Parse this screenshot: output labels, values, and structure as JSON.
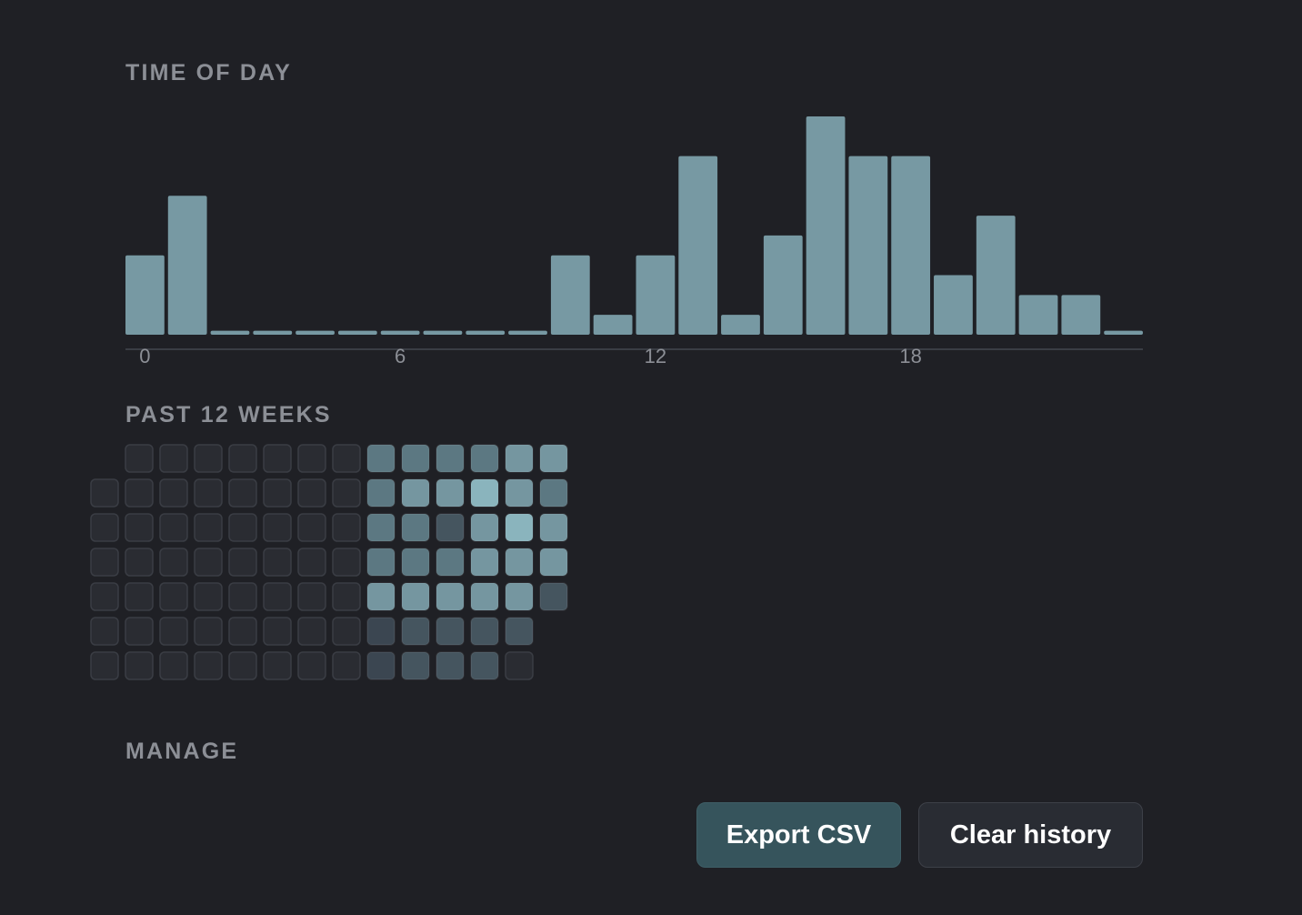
{
  "sections": {
    "time_of_day": "TIME OF DAY",
    "past_weeks": "PAST 12 WEEKS",
    "manage": "MANAGE"
  },
  "colors": {
    "background": "#1f2025",
    "bar": "#7799a3",
    "axis": "#3a3d44",
    "label": "#8c8f96",
    "export_button": "#36545c",
    "clear_button": "#292c33"
  },
  "chart_data": {
    "type": "bar",
    "categories": [
      "0",
      "1",
      "2",
      "3",
      "4",
      "5",
      "6",
      "7",
      "8",
      "9",
      "10",
      "11",
      "12",
      "13",
      "14",
      "15",
      "16",
      "17",
      "18",
      "19",
      "20",
      "21",
      "22",
      "23"
    ],
    "values": [
      4,
      7,
      0.2,
      0.2,
      0.2,
      0.2,
      0.2,
      0.2,
      0.2,
      0.2,
      4,
      1,
      4,
      9,
      1,
      5,
      11,
      9,
      9,
      3,
      6,
      2,
      2,
      0.2
    ],
    "tick_labels": [
      "0",
      "6",
      "12",
      "18"
    ],
    "ylim": [
      0,
      11
    ],
    "title": "TIME OF DAY",
    "xlabel": "",
    "ylabel": "",
    "grid": false
  },
  "heatmap": {
    "title": "PAST 12 WEEKS",
    "levels": [
      [
        0,
        -1,
        -1,
        -1,
        -1,
        -1,
        -1,
        -1,
        0,
        0
      ],
      [
        0,
        0,
        0,
        0,
        0,
        0,
        0,
        0,
        0,
        0
      ],
      [
        0,
        0,
        0,
        0,
        0,
        0,
        0,
        0,
        0,
        0
      ],
      [
        0,
        0,
        0,
        0,
        0,
        0,
        0,
        0,
        0,
        0
      ],
      [
        0,
        0,
        0,
        0,
        0,
        0,
        0,
        0,
        0,
        0
      ],
      [
        0,
        0,
        0,
        0,
        0,
        0,
        0,
        0,
        0,
        0
      ],
      [
        0,
        0,
        0,
        0,
        0,
        0,
        0,
        0,
        0,
        0
      ],
      [
        0,
        0,
        0,
        0,
        0,
        0,
        0,
        0,
        0,
        0
      ],
      [
        0,
        0,
        0,
        0,
        0,
        0,
        0,
        0,
        0,
        0
      ],
      [
        0,
        0,
        0,
        0,
        0,
        0,
        0,
        0,
        0,
        0
      ]
    ],
    "weeks": [
      [
        -1,
        0,
        0,
        0,
        0,
        0,
        0
      ],
      [
        0,
        0,
        0,
        0,
        0,
        0,
        0
      ],
      [
        0,
        0,
        0,
        0,
        0,
        0,
        0
      ],
      [
        0,
        0,
        0,
        0,
        0,
        0,
        0
      ],
      [
        0,
        0,
        0,
        0,
        0,
        0,
        0
      ],
      [
        0,
        0,
        0,
        0,
        0,
        0,
        0
      ],
      [
        0,
        0,
        0,
        0,
        0,
        0,
        0
      ],
      [
        0,
        0,
        0,
        0,
        0,
        0,
        0
      ],
      [
        3,
        3,
        3,
        3,
        4,
        1,
        1
      ],
      [
        3,
        4,
        3,
        3,
        4,
        2,
        2
      ],
      [
        3,
        4,
        2,
        3,
        4,
        2,
        2
      ],
      [
        3,
        5,
        4,
        4,
        4,
        2,
        2
      ],
      [
        4,
        4,
        5,
        4,
        4,
        2,
        0
      ],
      [
        4,
        3,
        4,
        4,
        2,
        -1,
        -1
      ]
    ],
    "level_colors": [
      "#2a2c32",
      "#3b4651",
      "#45555f",
      "#5c7882",
      "#7596a0",
      "#8ab4bd"
    ],
    "empty_border": "#3a3d44"
  },
  "buttons": {
    "export": "Export CSV",
    "clear": "Clear history"
  }
}
